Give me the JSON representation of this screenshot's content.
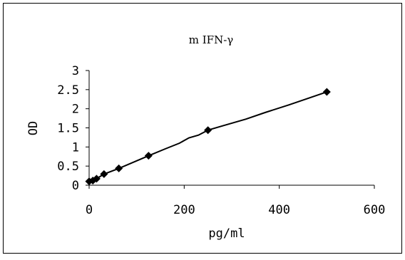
{
  "chart_data": {
    "type": "scatter",
    "title": "m IFN-γ",
    "xlabel": "pg/ml",
    "ylabel": "OD",
    "xlim": [
      0,
      600
    ],
    "ylim": [
      0,
      3
    ],
    "xticks": [
      "0",
      "200",
      "400",
      "600"
    ],
    "yticks": [
      "0",
      "0.5",
      "1",
      "1.5",
      "2",
      "2.5",
      "3"
    ],
    "grid": false,
    "legend": "none",
    "series": [
      {
        "points": [
          {
            "x": 0,
            "y": 0.1
          },
          {
            "x": 7.8,
            "y": 0.12
          },
          {
            "x": 15.6,
            "y": 0.17
          },
          {
            "x": 31.25,
            "y": 0.29
          },
          {
            "x": 62.5,
            "y": 0.44
          },
          {
            "x": 125,
            "y": 0.77
          },
          {
            "x": 250,
            "y": 1.44
          },
          {
            "x": 500,
            "y": 2.44
          }
        ],
        "line": [
          {
            "x": 0,
            "y": 0.08
          },
          {
            "x": 7.8,
            "y": 0.12
          },
          {
            "x": 15.6,
            "y": 0.17
          },
          {
            "x": 31.25,
            "y": 0.29
          },
          {
            "x": 62.5,
            "y": 0.44
          },
          {
            "x": 125,
            "y": 0.77
          },
          {
            "x": 160,
            "y": 0.95
          },
          {
            "x": 190,
            "y": 1.1
          },
          {
            "x": 210,
            "y": 1.24
          },
          {
            "x": 230,
            "y": 1.31
          },
          {
            "x": 250,
            "y": 1.44
          },
          {
            "x": 280,
            "y": 1.55
          },
          {
            "x": 330,
            "y": 1.73
          },
          {
            "x": 370,
            "y": 1.9
          },
          {
            "x": 420,
            "y": 2.1
          },
          {
            "x": 460,
            "y": 2.27
          },
          {
            "x": 500,
            "y": 2.44
          }
        ],
        "marker": "diamond",
        "color": "#000000"
      }
    ]
  }
}
